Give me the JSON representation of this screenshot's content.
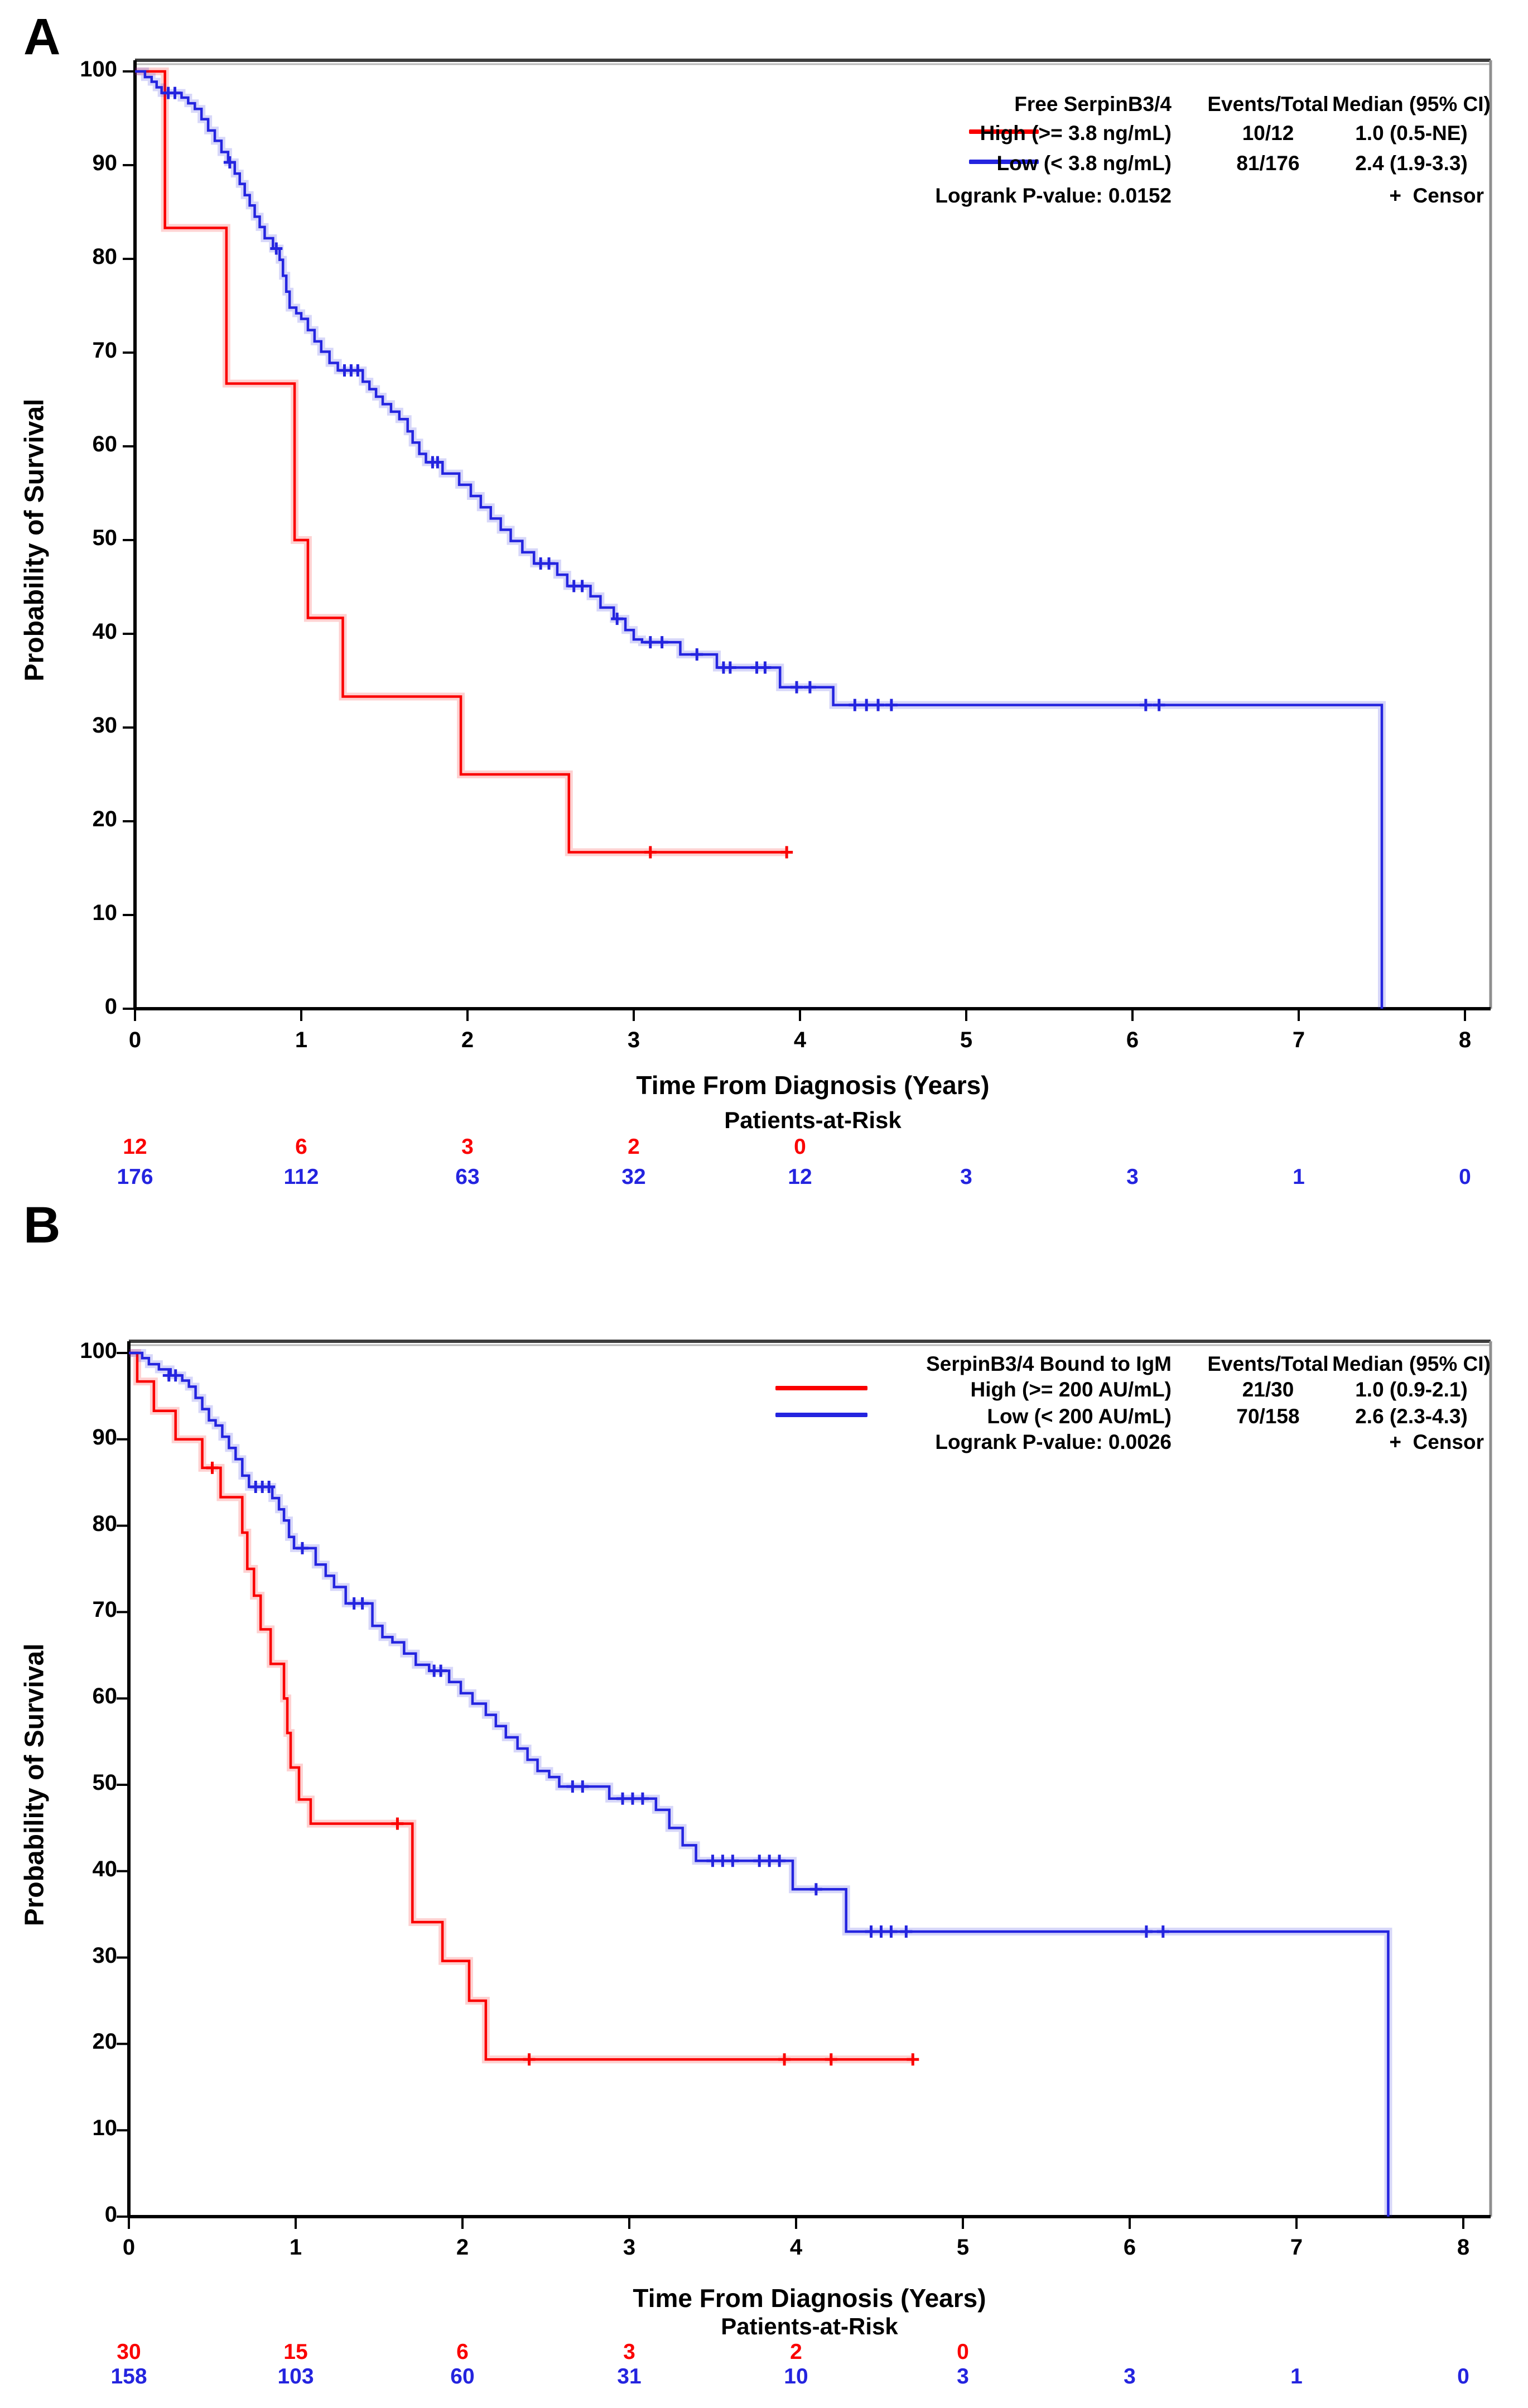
{
  "figure": {
    "panel_letters": [
      "A",
      "B"
    ]
  },
  "chart_data": [
    {
      "panel": "A",
      "type": "km_survival_step",
      "xlabel": "Time From Diagnosis (Years)",
      "ylabel": "Probability of Survival",
      "risk_label": "Patients-at-Risk",
      "xlim": [
        0,
        8.15
      ],
      "ylim": [
        0,
        100
      ],
      "grid": false,
      "xticks": [
        0,
        1,
        2,
        3,
        4,
        5,
        6,
        7,
        8
      ],
      "yticks": [
        0,
        10,
        20,
        30,
        40,
        50,
        60,
        70,
        80,
        90,
        100
      ],
      "legend": {
        "position": "top-right-inside",
        "header": [
          "Free SerpinB3/4",
          "Events/Total",
          "Median (95% CI)"
        ],
        "rows": [
          {
            "label": "High (>= 3.8 ng/mL)",
            "events_total": "10/12",
            "median": "1.0 (0.5-NE)",
            "color": "#FA0000"
          },
          {
            "label": "Low (< 3.8 ng/mL)",
            "events_total": "81/176",
            "median": "2.4 (1.9-3.3)",
            "color": "#2424DF"
          }
        ],
        "logrank": "Logrank P-value: 0.0152",
        "censor_plus": "+",
        "censor_note": "Censor"
      },
      "series": [
        {
          "name": "High (>= 3.8 ng/mL)",
          "color": "#FA0000",
          "end_t": 3.92,
          "end_drop": false,
          "steps": [
            [
              0.18,
              83.3
            ],
            [
              0.55,
              66.7
            ],
            [
              0.96,
              50.0
            ],
            [
              1.04,
              41.7
            ],
            [
              1.25,
              33.3
            ],
            [
              1.96,
              25.0
            ],
            [
              2.61,
              16.7
            ]
          ],
          "censors": [
            [
              3.1,
              16.7
            ],
            [
              3.92,
              16.7
            ]
          ]
        },
        {
          "name": "Low (< 3.8 ng/mL)",
          "color": "#2424DF",
          "end_t": 7.5,
          "end_drop": true,
          "steps": [
            [
              0.06,
              99.4
            ],
            [
              0.1,
              98.9
            ],
            [
              0.13,
              98.3
            ],
            [
              0.16,
              97.7
            ],
            [
              0.28,
              97.2
            ],
            [
              0.32,
              96.6
            ],
            [
              0.36,
              96.0
            ],
            [
              0.4,
              94.9
            ],
            [
              0.44,
              93.7
            ],
            [
              0.48,
              92.6
            ],
            [
              0.52,
              91.4
            ],
            [
              0.56,
              90.3
            ],
            [
              0.6,
              89.1
            ],
            [
              0.63,
              88.0
            ],
            [
              0.66,
              86.8
            ],
            [
              0.69,
              85.7
            ],
            [
              0.72,
              84.5
            ],
            [
              0.75,
              83.4
            ],
            [
              0.78,
              82.2
            ],
            [
              0.83,
              81.1
            ],
            [
              0.87,
              79.9
            ],
            [
              0.89,
              78.2
            ],
            [
              0.91,
              76.5
            ],
            [
              0.93,
              74.8
            ],
            [
              0.97,
              74.2
            ],
            [
              1.0,
              73.6
            ],
            [
              1.04,
              72.4
            ],
            [
              1.08,
              71.2
            ],
            [
              1.12,
              70.1
            ],
            [
              1.17,
              68.9
            ],
            [
              1.22,
              68.1
            ],
            [
              1.37,
              66.9
            ],
            [
              1.41,
              66.1
            ],
            [
              1.45,
              65.3
            ],
            [
              1.49,
              64.5
            ],
            [
              1.54,
              63.7
            ],
            [
              1.59,
              62.9
            ],
            [
              1.64,
              61.6
            ],
            [
              1.67,
              60.4
            ],
            [
              1.71,
              59.2
            ],
            [
              1.75,
              58.3
            ],
            [
              1.85,
              57.1
            ],
            [
              1.95,
              55.9
            ],
            [
              2.02,
              54.7
            ],
            [
              2.08,
              53.5
            ],
            [
              2.14,
              52.3
            ],
            [
              2.2,
              51.1
            ],
            [
              2.26,
              49.9
            ],
            [
              2.33,
              48.7
            ],
            [
              2.4,
              47.5
            ],
            [
              2.54,
              46.3
            ],
            [
              2.6,
              45.1
            ],
            [
              2.74,
              44.0
            ],
            [
              2.8,
              42.8
            ],
            [
              2.88,
              41.6
            ],
            [
              2.95,
              40.4
            ],
            [
              3.0,
              39.4
            ],
            [
              3.05,
              39.1
            ],
            [
              3.28,
              37.8
            ],
            [
              3.5,
              36.4
            ],
            [
              3.88,
              34.3
            ],
            [
              4.2,
              32.4
            ]
          ],
          "censors": [
            [
              0.2,
              97.7
            ],
            [
              0.24,
              97.7
            ],
            [
              0.57,
              90.3
            ],
            [
              0.85,
              81.1
            ],
            [
              1.26,
              68.1
            ],
            [
              1.3,
              68.1
            ],
            [
              1.34,
              68.1
            ],
            [
              1.79,
              58.3
            ],
            [
              1.82,
              58.3
            ],
            [
              2.44,
              47.5
            ],
            [
              2.49,
              47.5
            ],
            [
              2.64,
              45.1
            ],
            [
              2.69,
              45.1
            ],
            [
              2.9,
              41.6
            ],
            [
              3.1,
              39.1
            ],
            [
              3.17,
              39.1
            ],
            [
              3.38,
              37.8
            ],
            [
              3.54,
              36.4
            ],
            [
              3.58,
              36.4
            ],
            [
              3.74,
              36.4
            ],
            [
              3.79,
              36.4
            ],
            [
              3.98,
              34.3
            ],
            [
              4.06,
              34.3
            ],
            [
              4.33,
              32.4
            ],
            [
              4.4,
              32.4
            ],
            [
              4.47,
              32.4
            ],
            [
              4.55,
              32.4
            ],
            [
              6.08,
              32.4
            ],
            [
              6.16,
              32.4
            ]
          ]
        }
      ],
      "at_risk": [
        {
          "color": "#FA0000",
          "values": [
            "12",
            "6",
            "3",
            "2",
            "0"
          ]
        },
        {
          "color": "#2424DF",
          "values": [
            "176",
            "112",
            "63",
            "32",
            "12",
            "3",
            "3",
            "1",
            "0"
          ]
        }
      ]
    },
    {
      "panel": "B",
      "type": "km_survival_step",
      "xlabel": "Time From Diagnosis (Years)",
      "ylabel": "Probability of Survival",
      "risk_label": "Patients-at-Risk",
      "xlim": [
        0,
        8.15
      ],
      "ylim": [
        0,
        100
      ],
      "grid": false,
      "xticks": [
        0,
        1,
        2,
        3,
        4,
        5,
        6,
        7,
        8
      ],
      "yticks": [
        0,
        10,
        20,
        30,
        40,
        50,
        60,
        70,
        80,
        90,
        100
      ],
      "legend": {
        "position": "top-right-inside",
        "header": [
          "SerpinB3/4 Bound to IgM",
          "Events/Total",
          "Median (95% CI)"
        ],
        "rows": [
          {
            "label": "High (>= 200 AU/mL)",
            "events_total": "21/30",
            "median": "1.0 (0.9-2.1)",
            "color": "#FA0000"
          },
          {
            "label": "Low (< 200 AU/mL)",
            "events_total": "70/158",
            "median": "2.6 (2.3-4.3)",
            "color": "#2424DF"
          }
        ],
        "logrank": "Logrank P-value: 0.0026",
        "censor_plus": "+",
        "censor_note": "Censor"
      },
      "series": [
        {
          "name": "High (>= 200 AU/mL)",
          "color": "#FA0000",
          "end_t": 4.7,
          "end_drop": false,
          "steps": [
            [
              0.05,
              96.7
            ],
            [
              0.15,
              93.3
            ],
            [
              0.28,
              90.0
            ],
            [
              0.44,
              86.7
            ],
            [
              0.55,
              83.3
            ],
            [
              0.68,
              79.2
            ],
            [
              0.71,
              75.0
            ],
            [
              0.75,
              71.9
            ],
            [
              0.79,
              68.0
            ],
            [
              0.85,
              64.0
            ],
            [
              0.93,
              60.0
            ],
            [
              0.95,
              56.0
            ],
            [
              0.97,
              52.0
            ],
            [
              1.02,
              48.3
            ],
            [
              1.09,
              45.5
            ],
            [
              1.7,
              34.1
            ],
            [
              1.88,
              29.6
            ],
            [
              2.04,
              25.0
            ],
            [
              2.14,
              18.2
            ]
          ],
          "censors": [
            [
              0.5,
              86.7
            ],
            [
              1.61,
              45.5
            ],
            [
              2.4,
              18.2
            ],
            [
              3.93,
              18.2
            ],
            [
              4.21,
              18.2
            ],
            [
              4.7,
              18.2
            ]
          ]
        },
        {
          "name": "Low (< 200 AU/mL)",
          "color": "#2424DF",
          "end_t": 7.55,
          "end_drop": true,
          "steps": [
            [
              0.08,
              99.4
            ],
            [
              0.12,
              98.7
            ],
            [
              0.18,
              98.1
            ],
            [
              0.25,
              97.4
            ],
            [
              0.32,
              96.8
            ],
            [
              0.36,
              96.1
            ],
            [
              0.4,
              94.8
            ],
            [
              0.44,
              93.5
            ],
            [
              0.48,
              92.2
            ],
            [
              0.52,
              91.6
            ],
            [
              0.56,
              90.3
            ],
            [
              0.6,
              89.0
            ],
            [
              0.64,
              87.7
            ],
            [
              0.68,
              85.8
            ],
            [
              0.72,
              84.5
            ],
            [
              0.86,
              83.2
            ],
            [
              0.9,
              81.9
            ],
            [
              0.93,
              80.6
            ],
            [
              0.96,
              78.7
            ],
            [
              0.99,
              77.4
            ],
            [
              1.12,
              75.5
            ],
            [
              1.18,
              74.2
            ],
            [
              1.23,
              72.9
            ],
            [
              1.3,
              71.0
            ],
            [
              1.46,
              68.4
            ],
            [
              1.52,
              67.1
            ],
            [
              1.58,
              66.5
            ],
            [
              1.65,
              65.2
            ],
            [
              1.72,
              63.9
            ],
            [
              1.8,
              63.2
            ],
            [
              1.92,
              61.9
            ],
            [
              1.99,
              60.6
            ],
            [
              2.06,
              59.4
            ],
            [
              2.14,
              58.1
            ],
            [
              2.2,
              56.8
            ],
            [
              2.26,
              55.5
            ],
            [
              2.33,
              54.2
            ],
            [
              2.39,
              52.9
            ],
            [
              2.45,
              51.6
            ],
            [
              2.52,
              50.9
            ],
            [
              2.58,
              49.8
            ],
            [
              2.88,
              48.4
            ],
            [
              3.16,
              47.1
            ],
            [
              3.24,
              45.0
            ],
            [
              3.32,
              43.0
            ],
            [
              3.4,
              41.2
            ],
            [
              3.98,
              37.9
            ],
            [
              4.3,
              33.0
            ]
          ],
          "censors": [
            [
              0.24,
              97.4
            ],
            [
              0.28,
              97.4
            ],
            [
              0.76,
              84.5
            ],
            [
              0.8,
              84.5
            ],
            [
              0.84,
              84.5
            ],
            [
              1.04,
              77.4
            ],
            [
              1.35,
              71.0
            ],
            [
              1.4,
              71.0
            ],
            [
              1.83,
              63.2
            ],
            [
              1.87,
              63.2
            ],
            [
              2.66,
              49.8
            ],
            [
              2.72,
              49.8
            ],
            [
              2.96,
              48.4
            ],
            [
              3.02,
              48.4
            ],
            [
              3.08,
              48.4
            ],
            [
              3.5,
              41.2
            ],
            [
              3.56,
              41.2
            ],
            [
              3.62,
              41.2
            ],
            [
              3.78,
              41.2
            ],
            [
              3.84,
              41.2
            ],
            [
              3.9,
              41.2
            ],
            [
              4.12,
              37.9
            ],
            [
              4.45,
              33.0
            ],
            [
              4.51,
              33.0
            ],
            [
              4.57,
              33.0
            ],
            [
              4.66,
              33.0
            ],
            [
              6.1,
              33.0
            ],
            [
              6.2,
              33.0
            ]
          ]
        }
      ],
      "at_risk": [
        {
          "color": "#FA0000",
          "values": [
            "30",
            "15",
            "6",
            "3",
            "2",
            "0"
          ]
        },
        {
          "color": "#2424DF",
          "values": [
            "158",
            "103",
            "60",
            "31",
            "10",
            "3",
            "3",
            "1",
            "0"
          ]
        }
      ]
    }
  ]
}
